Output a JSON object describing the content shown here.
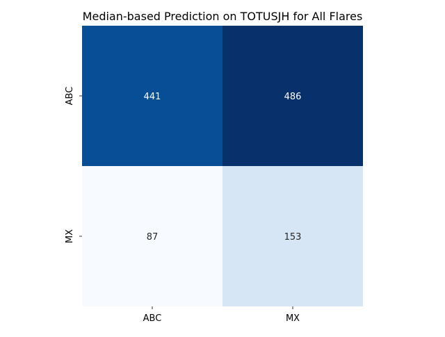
{
  "chart_data": {
    "type": "heatmap",
    "title": "Median-based Prediction on TOTUSJH for All Flares",
    "xlabel": "",
    "ylabel": "",
    "x_categories": [
      "ABC",
      "MX"
    ],
    "y_categories": [
      "ABC",
      "MX"
    ],
    "values": [
      [
        441,
        486
      ],
      [
        87,
        153
      ]
    ],
    "colormap": "Blues",
    "value_range": [
      87,
      486
    ],
    "colorbar": false,
    "grid": false,
    "annotations": true
  }
}
